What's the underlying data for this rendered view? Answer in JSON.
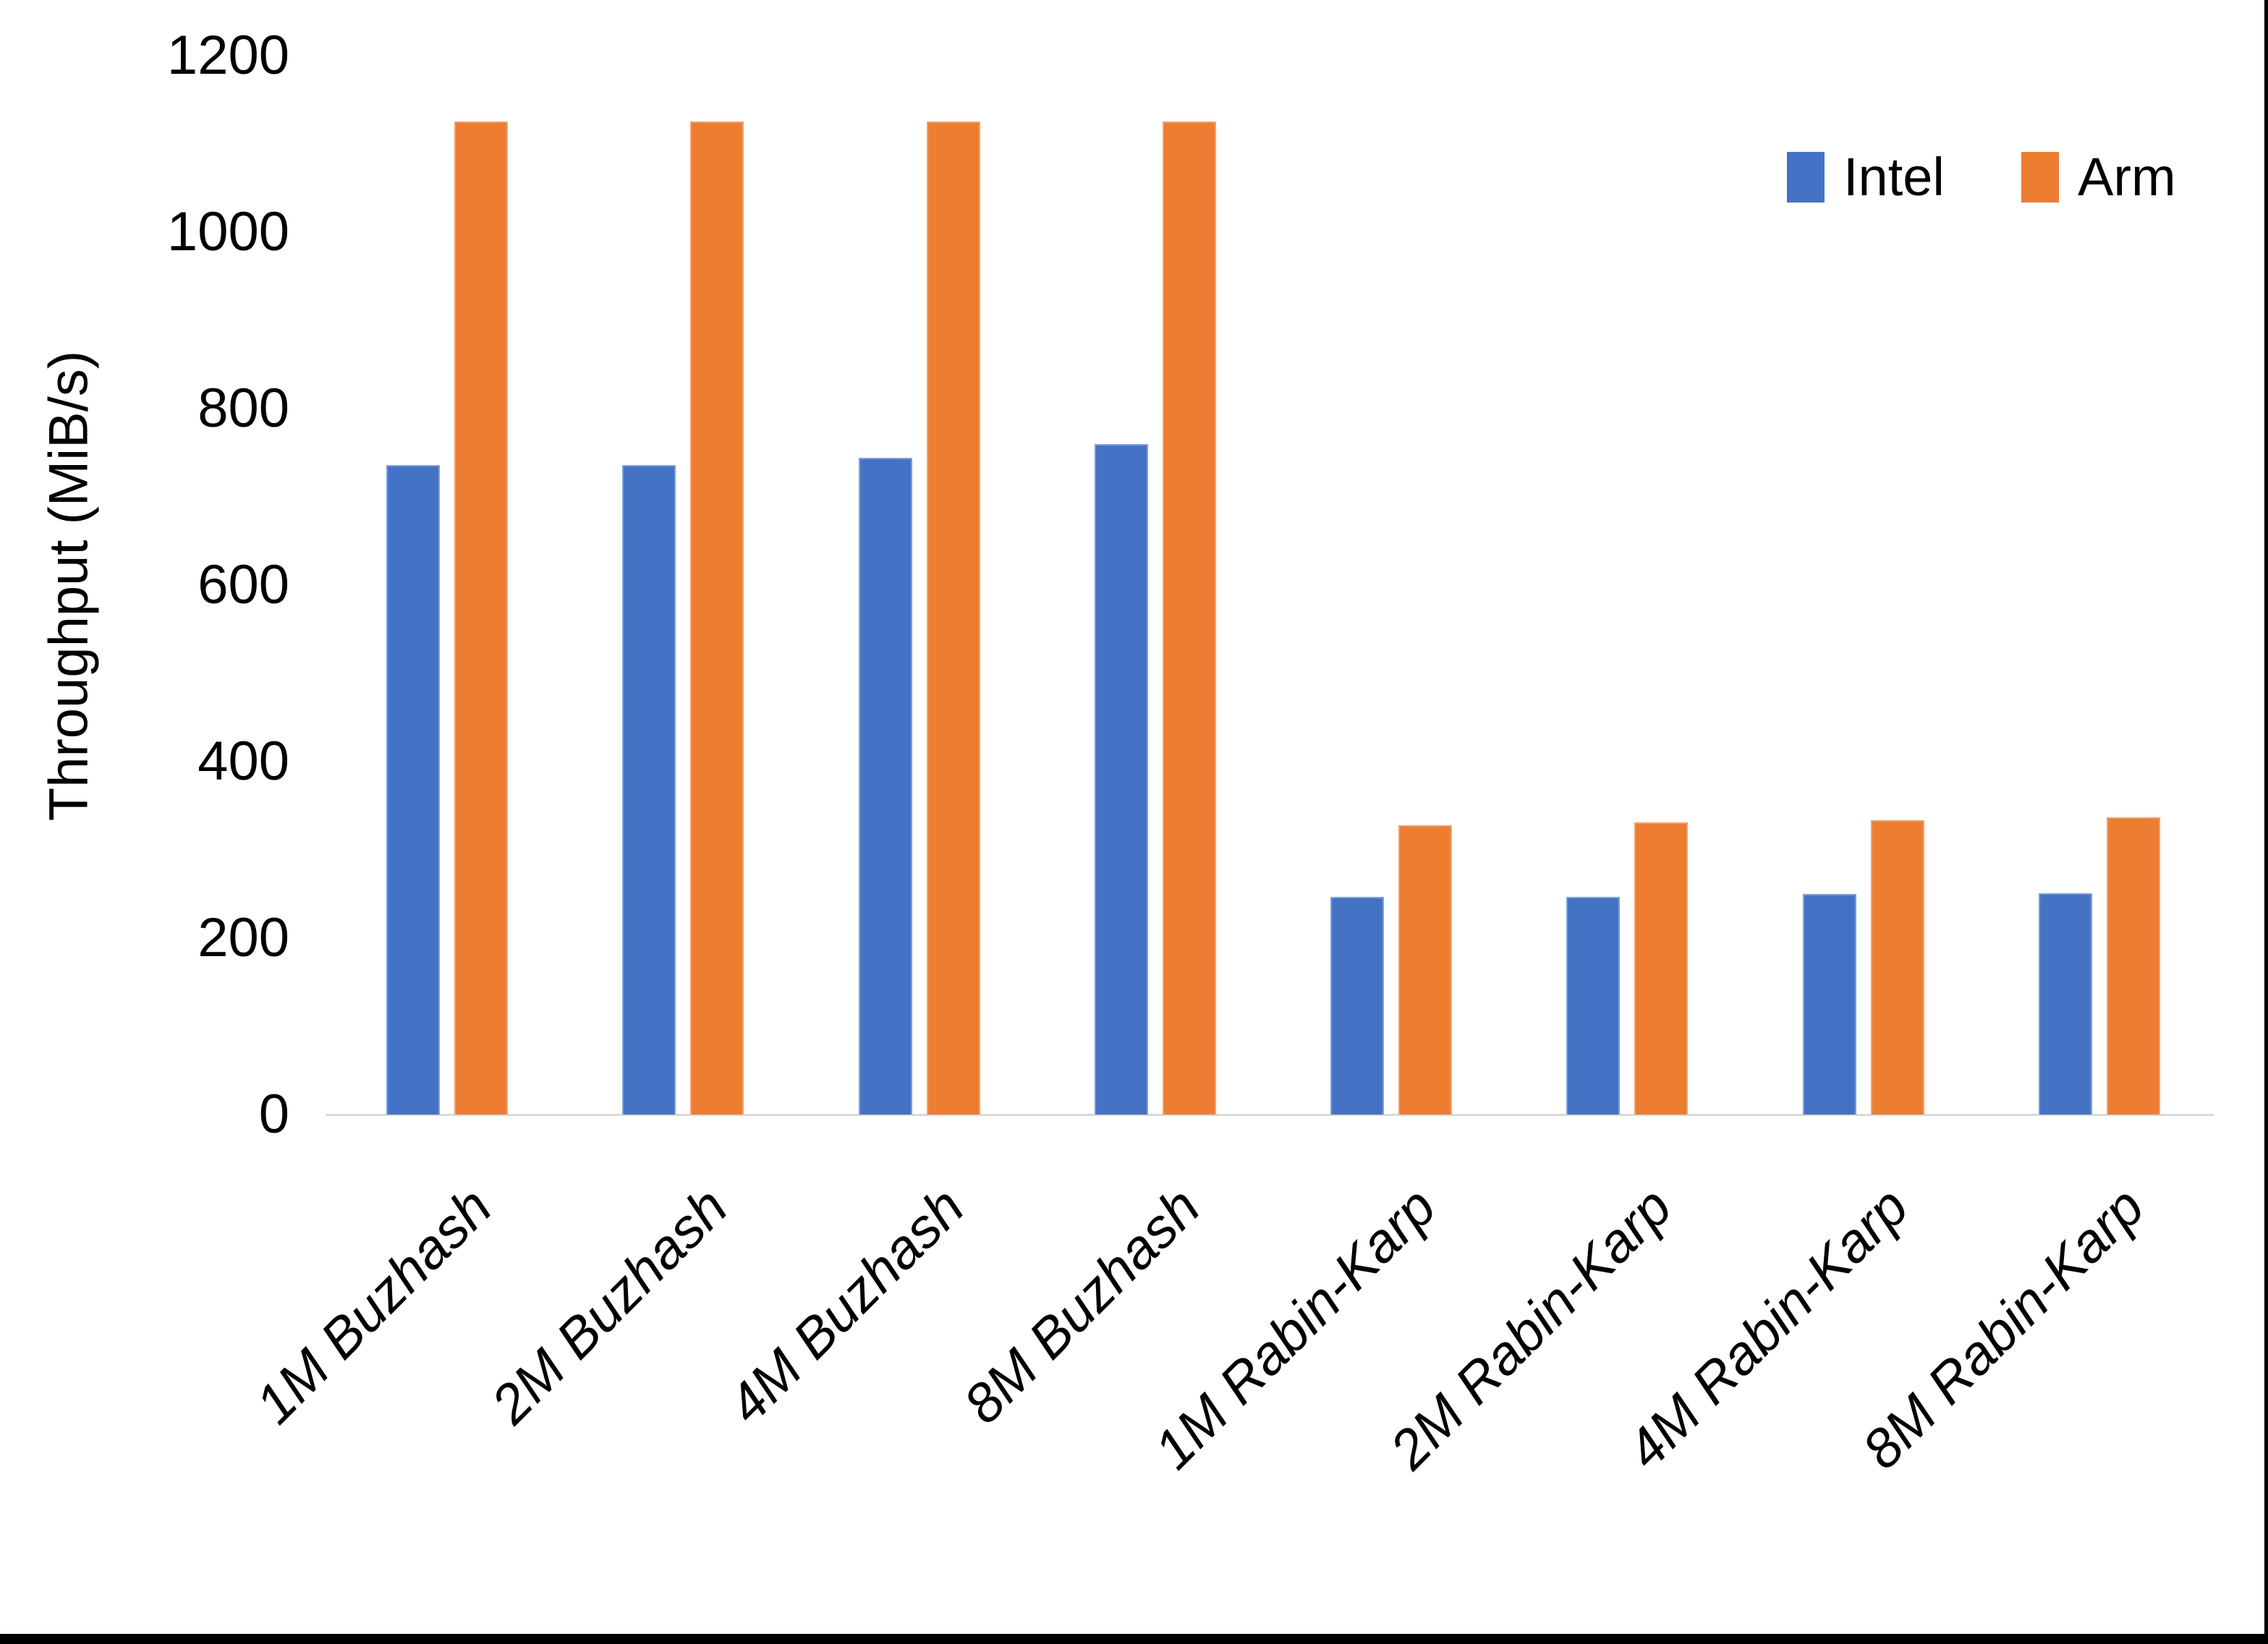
{
  "figure": {
    "y_axis_title": "Throughput (MiB/s)"
  },
  "legend": {
    "position": "top-right",
    "items": [
      {
        "label": "Intel",
        "color": "#4472C4"
      },
      {
        "label": "Arm",
        "color": "#ED7D31"
      }
    ]
  },
  "chart_data": {
    "type": "bar",
    "title": "",
    "categories": [
      "1M Buzhash",
      "2M Buzhash",
      "4M Buzhash",
      "8M Buzhash",
      "1M Rabin-Karp",
      "2M Rabin-Karp",
      "4M Rabin-Karp",
      "8M Rabin-Karp"
    ],
    "series": [
      {
        "name": "Intel",
        "color": "#4472C4",
        "border_color": "#7ba0dc",
        "values": [
          736,
          736,
          744,
          760,
          247,
          247,
          250,
          251
        ]
      },
      {
        "name": "Arm",
        "color": "#ED7D31",
        "border_color": "#f2a269",
        "values": [
          1125,
          1125,
          1125,
          1125,
          328,
          331,
          334,
          337
        ]
      }
    ],
    "xlabel": "",
    "ylabel": "Throughput (MiB/s)",
    "ylim": [
      0,
      1200
    ],
    "ytick_step": 200,
    "ytick_labels": [
      "0",
      "200",
      "400",
      "600",
      "800",
      "1000",
      "1200"
    ],
    "grid": false,
    "legend_position": "top-right",
    "axis_line_color": "#D9D9D9",
    "text_color": "#000000",
    "background": "#FFFFFF"
  }
}
